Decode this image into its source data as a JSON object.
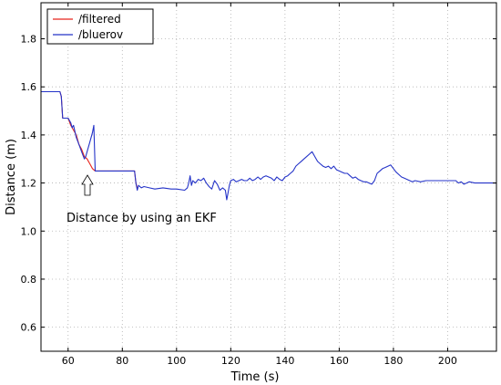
{
  "chart_data": {
    "type": "line",
    "title": "",
    "xlabel": "Time (s)",
    "ylabel": "Distance (m)",
    "xlim": [
      50,
      218
    ],
    "ylim": [
      0.5,
      1.95
    ],
    "xticks": [
      60,
      80,
      100,
      120,
      140,
      160,
      180,
      200
    ],
    "yticks": [
      0.6,
      0.8,
      1.0,
      1.2,
      1.4,
      1.6,
      1.8
    ],
    "grid": true,
    "legend_position": "top-left",
    "annotation": {
      "text": "Distance by using an EKF",
      "arrow_target": {
        "x": 67.5,
        "y": 1.27
      }
    },
    "series": [
      {
        "name": "/filtered",
        "color": "#e8241c",
        "x": [
          50,
          57,
          57.5,
          58,
          59,
          60,
          61,
          62,
          63,
          64,
          65,
          66,
          67,
          68,
          69,
          70,
          72,
          75,
          80,
          84.5,
          85,
          85.5
        ],
        "y": [
          1.58,
          1.58,
          1.56,
          1.47,
          1.47,
          1.47,
          1.44,
          1.42,
          1.4,
          1.36,
          1.34,
          1.31,
          1.3,
          1.28,
          1.26,
          1.25,
          1.25,
          1.25,
          1.25,
          1.25,
          1.2,
          1.18
        ]
      },
      {
        "name": "/bluerov",
        "color": "#2433c8",
        "x": [
          50,
          57,
          57.5,
          58,
          59,
          60,
          61,
          61.5,
          62,
          63,
          64,
          65,
          66,
          66.5,
          67,
          68,
          69,
          69.5,
          70,
          70.5,
          72,
          75,
          80,
          84.5,
          85,
          85.5,
          86,
          87,
          88,
          90,
          92,
          95,
          98,
          100,
          103,
          104,
          104.5,
          105,
          105.5,
          106,
          107,
          108,
          109,
          110,
          111,
          112,
          113,
          114,
          115,
          116,
          117,
          118,
          118.5,
          119,
          119.5,
          120,
          121,
          122,
          123,
          124,
          125,
          126,
          127,
          128,
          129,
          130,
          131,
          132,
          133,
          134,
          135,
          136,
          137,
          138,
          139,
          140,
          141,
          142,
          143,
          144,
          145,
          146,
          147,
          148,
          149,
          150,
          151,
          152,
          153,
          154,
          155,
          156,
          157,
          158,
          159,
          160,
          161,
          162,
          163,
          164,
          165,
          166,
          167,
          168,
          169,
          170,
          171,
          172,
          173,
          174,
          175,
          176,
          177,
          178,
          179,
          180,
          181,
          182,
          183,
          184,
          185,
          186,
          187,
          188,
          190,
          192,
          195,
          198,
          200,
          202,
          203,
          204,
          205,
          206,
          207,
          208,
          210,
          212,
          215,
          218
        ],
        "y": [
          1.58,
          1.58,
          1.56,
          1.47,
          1.47,
          1.47,
          1.45,
          1.43,
          1.44,
          1.39,
          1.36,
          1.33,
          1.3,
          1.31,
          1.33,
          1.37,
          1.41,
          1.44,
          1.25,
          1.25,
          1.25,
          1.25,
          1.25,
          1.25,
          1.2,
          1.17,
          1.19,
          1.18,
          1.185,
          1.18,
          1.175,
          1.18,
          1.175,
          1.175,
          1.17,
          1.18,
          1.2,
          1.23,
          1.19,
          1.21,
          1.2,
          1.215,
          1.21,
          1.22,
          1.2,
          1.185,
          1.175,
          1.21,
          1.195,
          1.17,
          1.18,
          1.17,
          1.13,
          1.16,
          1.19,
          1.21,
          1.215,
          1.205,
          1.21,
          1.215,
          1.21,
          1.21,
          1.22,
          1.21,
          1.215,
          1.225,
          1.215,
          1.225,
          1.23,
          1.225,
          1.22,
          1.21,
          1.225,
          1.215,
          1.21,
          1.225,
          1.23,
          1.24,
          1.25,
          1.27,
          1.28,
          1.29,
          1.3,
          1.31,
          1.32,
          1.33,
          1.31,
          1.29,
          1.28,
          1.27,
          1.265,
          1.27,
          1.26,
          1.27,
          1.255,
          1.25,
          1.245,
          1.24,
          1.24,
          1.23,
          1.22,
          1.225,
          1.215,
          1.21,
          1.205,
          1.205,
          1.2,
          1.195,
          1.21,
          1.24,
          1.25,
          1.26,
          1.265,
          1.27,
          1.275,
          1.26,
          1.245,
          1.235,
          1.225,
          1.22,
          1.215,
          1.21,
          1.205,
          1.21,
          1.205,
          1.21,
          1.21,
          1.21,
          1.21,
          1.21,
          1.21,
          1.2,
          1.205,
          1.195,
          1.2,
          1.205,
          1.2,
          1.2,
          1.2,
          1.2
        ]
      }
    ]
  }
}
